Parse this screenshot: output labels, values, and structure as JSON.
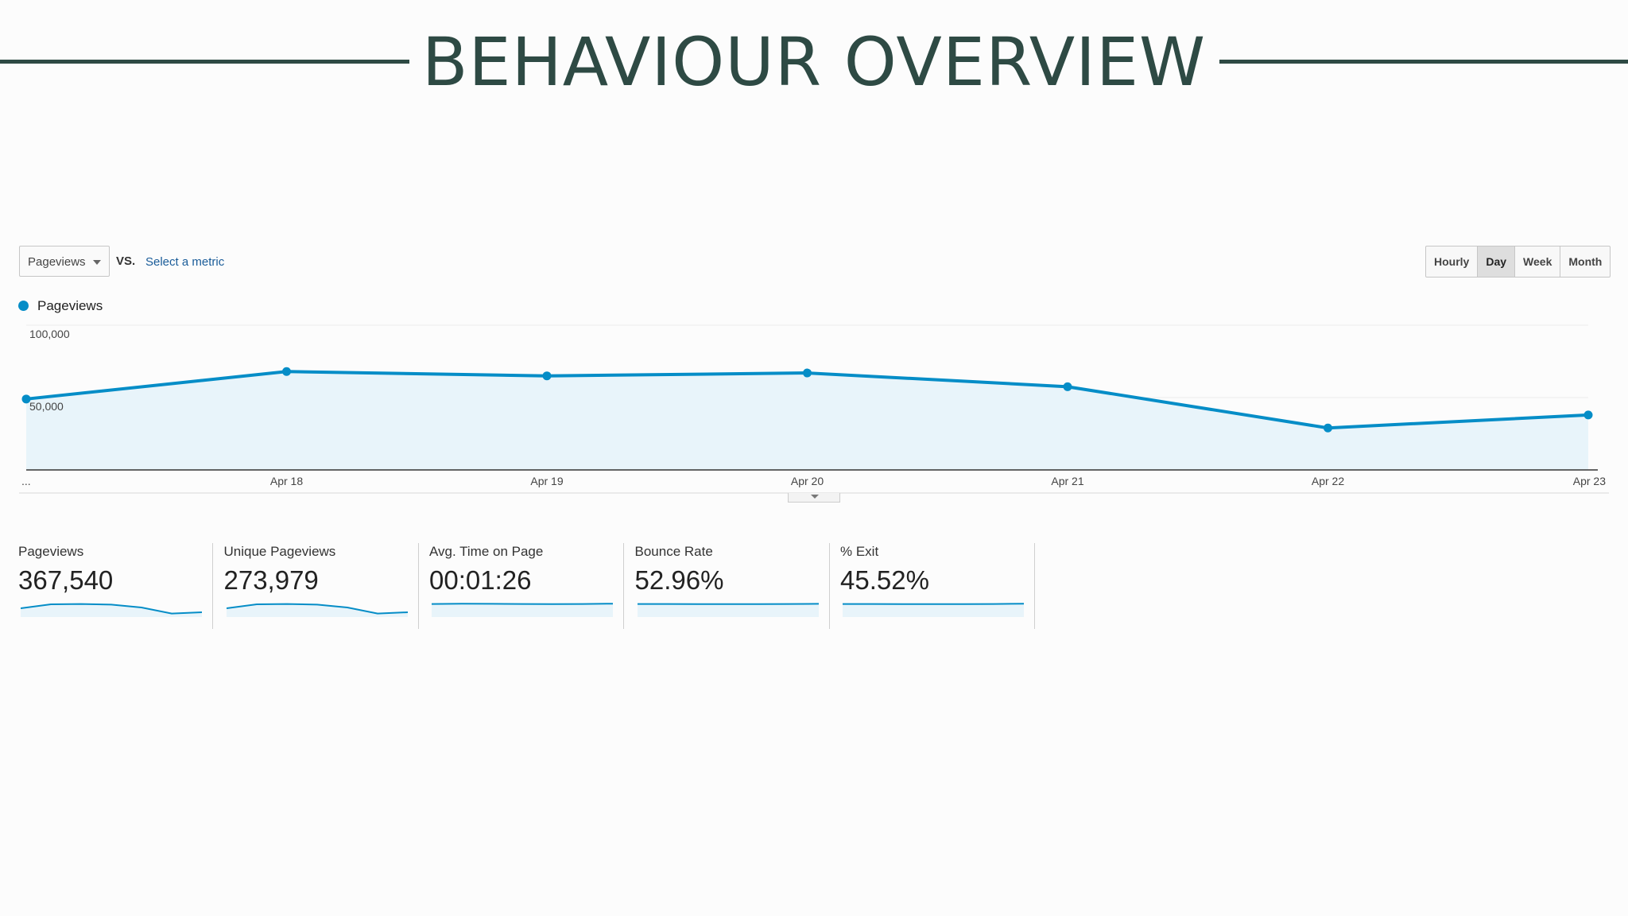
{
  "slide": {
    "title": "BEHAVIOUR OVERVIEW"
  },
  "controls": {
    "metric_select_value": "Pageviews",
    "vs_label": "VS.",
    "compare_link": "Select a metric",
    "periods": [
      "Hourly",
      "Day",
      "Week",
      "Month"
    ],
    "active_period": "Day"
  },
  "colors": {
    "accent": "#058dc7",
    "title": "#2e4a44",
    "fill": "#e8f4fa"
  },
  "chart_data": {
    "type": "area",
    "series": [
      {
        "name": "Pageviews",
        "values": [
          49000,
          68000,
          65000,
          67000,
          57500,
          29000,
          38000
        ]
      }
    ],
    "categories": [
      "...",
      "Apr 18",
      "Apr 19",
      "Apr 20",
      "Apr 21",
      "Apr 22",
      "Apr 23"
    ],
    "y_ticks": [
      {
        "value": 100000,
        "label": "100,000"
      },
      {
        "value": 50000,
        "label": "50,000"
      }
    ],
    "ylim": [
      0,
      100000
    ],
    "grid": true,
    "legend": "top-left"
  },
  "scorecards": [
    {
      "label": "Pageviews",
      "value": "367,540",
      "trend": [
        0.45,
        0.7,
        0.72,
        0.68,
        0.5,
        0.12,
        0.2
      ]
    },
    {
      "label": "Unique Pageviews",
      "value": "273,979",
      "trend": [
        0.45,
        0.7,
        0.72,
        0.68,
        0.5,
        0.12,
        0.2
      ]
    },
    {
      "label": "Avg. Time on Page",
      "value": "00:01:26",
      "trend": [
        0.72,
        0.74,
        0.73,
        0.72,
        0.71,
        0.72,
        0.74
      ]
    },
    {
      "label": "Bounce Rate",
      "value": "52.96%",
      "trend": [
        0.72,
        0.72,
        0.71,
        0.71,
        0.71,
        0.72,
        0.73
      ]
    },
    {
      "label": "% Exit",
      "value": "45.52%",
      "trend": [
        0.72,
        0.72,
        0.71,
        0.71,
        0.71,
        0.72,
        0.74
      ]
    }
  ]
}
